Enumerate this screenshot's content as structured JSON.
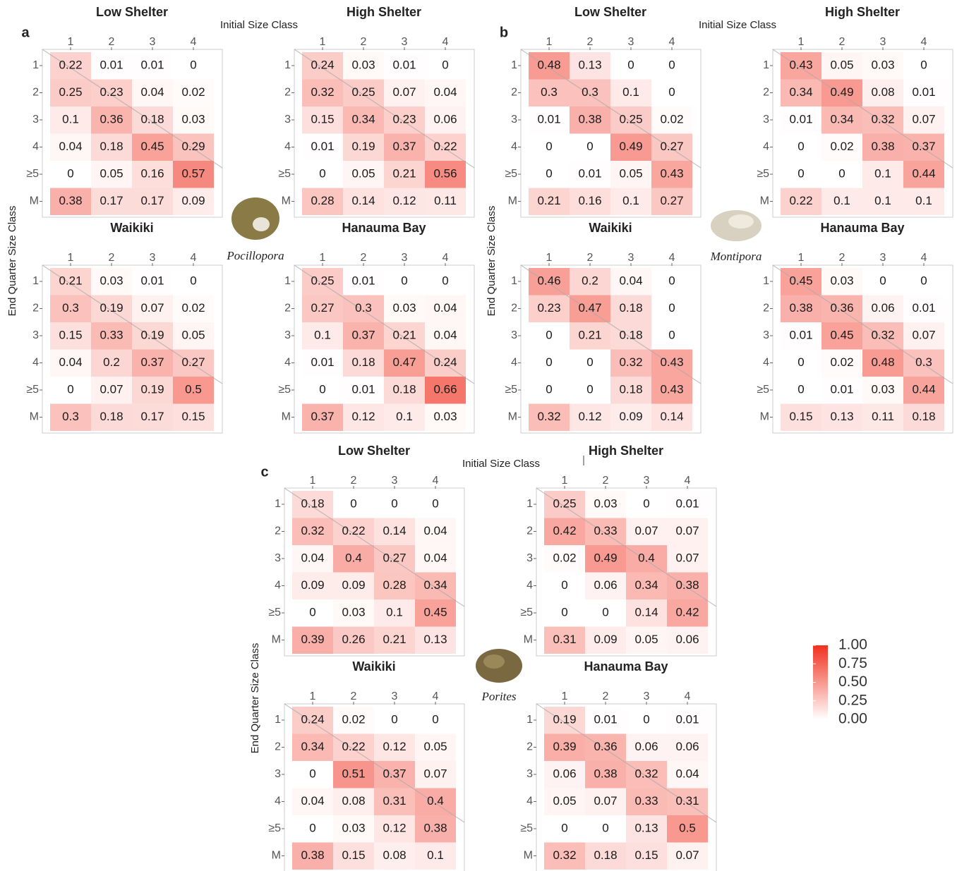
{
  "panels": [
    {
      "label": "a",
      "species": "Pocillopora",
      "xlabel": "Initial Size Class",
      "ylabel": "End Quarter Size Class"
    },
    {
      "label": "b",
      "species": "Montipora",
      "xlabel": "Initial Size Class",
      "ylabel": "End Quarter Size Class"
    },
    {
      "label": "c",
      "species": "Porites",
      "xlabel": "Initial Size Class",
      "ylabel": "End Quarter Size Class"
    }
  ],
  "colorbar": {
    "lim": [
      0,
      1
    ],
    "colors": [
      "#ffffff",
      "#f0301e"
    ],
    "ticks": [
      {
        "value": 1,
        "label": "1.00"
      },
      {
        "value": 0.75,
        "label": "0.75"
      },
      {
        "value": 0.5,
        "label": "0.50"
      },
      {
        "value": 0.25,
        "label": "0.25"
      },
      {
        "value": 0,
        "label": "0.00"
      }
    ]
  },
  "chart_data": [
    {
      "type": "heatmap",
      "title": "Low Shelter",
      "x": [
        "1",
        "2",
        "3",
        "4"
      ],
      "y": [
        "1",
        "2",
        "3",
        "4",
        "≥5",
        "M"
      ],
      "values": [
        [
          0.22,
          0.01,
          0.01,
          0
        ],
        [
          0.25,
          0.23,
          0.04,
          0.02
        ],
        [
          0.1,
          0.36,
          0.18,
          0.03
        ],
        [
          0.04,
          0.18,
          0.45,
          0.29
        ],
        [
          0,
          0.05,
          0.16,
          0.57
        ],
        [
          0.38,
          0.17,
          0.17,
          0.09
        ]
      ]
    },
    {
      "type": "heatmap",
      "title": "High Shelter",
      "x": [
        "1",
        "2",
        "3",
        "4"
      ],
      "y": [
        "1",
        "2",
        "3",
        "4",
        "≥5",
        "M"
      ],
      "values": [
        [
          0.24,
          0.03,
          0.01,
          0
        ],
        [
          0.32,
          0.25,
          0.07,
          0.04
        ],
        [
          0.15,
          0.34,
          0.23,
          0.06
        ],
        [
          0.01,
          0.19,
          0.37,
          0.22
        ],
        [
          0,
          0.05,
          0.21,
          0.56
        ],
        [
          0.28,
          0.14,
          0.12,
          0.11
        ]
      ]
    },
    {
      "type": "heatmap",
      "title": "Waikiki",
      "x": [
        "1",
        "2",
        "3",
        "4"
      ],
      "y": [
        "1",
        "2",
        "3",
        "4",
        "≥5",
        "M"
      ],
      "values": [
        [
          0.21,
          0.03,
          0.01,
          0
        ],
        [
          0.3,
          0.19,
          0.07,
          0.02
        ],
        [
          0.15,
          0.33,
          0.19,
          0.05
        ],
        [
          0.04,
          0.2,
          0.37,
          0.27
        ],
        [
          0,
          0.07,
          0.19,
          0.5
        ],
        [
          0.3,
          0.18,
          0.17,
          0.15
        ]
      ]
    },
    {
      "type": "heatmap",
      "title": "Hanauma Bay",
      "x": [
        "1",
        "2",
        "3",
        "4"
      ],
      "y": [
        "1",
        "2",
        "3",
        "4",
        "≥5",
        "M"
      ],
      "values": [
        [
          0.25,
          0.01,
          0,
          0
        ],
        [
          0.27,
          0.3,
          0.03,
          0.04
        ],
        [
          0.1,
          0.37,
          0.21,
          0.04
        ],
        [
          0.01,
          0.18,
          0.47,
          0.24
        ],
        [
          0,
          0.01,
          0.18,
          0.66
        ],
        [
          0.37,
          0.12,
          0.1,
          0.03
        ]
      ]
    },
    {
      "type": "heatmap",
      "title": "Low Shelter",
      "x": [
        "1",
        "2",
        "3",
        "4"
      ],
      "y": [
        "1",
        "2",
        "3",
        "4",
        "≥5",
        "M"
      ],
      "values": [
        [
          0.48,
          0.13,
          0,
          0
        ],
        [
          0.3,
          0.3,
          0.1,
          0
        ],
        [
          0.01,
          0.38,
          0.25,
          0.02
        ],
        [
          0,
          0,
          0.49,
          0.27
        ],
        [
          0,
          0.01,
          0.05,
          0.43
        ],
        [
          0.21,
          0.16,
          0.1,
          0.27
        ]
      ]
    },
    {
      "type": "heatmap",
      "title": "High Shelter",
      "x": [
        "1",
        "2",
        "3",
        "4"
      ],
      "y": [
        "1",
        "2",
        "3",
        "4",
        "≥5",
        "M"
      ],
      "values": [
        [
          0.43,
          0.05,
          0.03,
          0
        ],
        [
          0.34,
          0.49,
          0.08,
          0.01
        ],
        [
          0.01,
          0.34,
          0.32,
          0.07
        ],
        [
          0,
          0.02,
          0.38,
          0.37
        ],
        [
          0,
          0,
          0.1,
          0.44
        ],
        [
          0.22,
          0.1,
          0.1,
          0.1
        ]
      ]
    },
    {
      "type": "heatmap",
      "title": "Waikiki",
      "x": [
        "1",
        "2",
        "3",
        "4"
      ],
      "y": [
        "1",
        "2",
        "3",
        "4",
        "≥5",
        "M"
      ],
      "values": [
        [
          0.46,
          0.2,
          0.04,
          0
        ],
        [
          0.23,
          0.47,
          0.18,
          0
        ],
        [
          0,
          0.21,
          0.18,
          0
        ],
        [
          0,
          0,
          0.32,
          0.43
        ],
        [
          0,
          0,
          0.18,
          0.43
        ],
        [
          0.32,
          0.12,
          0.09,
          0.14
        ]
      ]
    },
    {
      "type": "heatmap",
      "title": "Hanauma Bay",
      "x": [
        "1",
        "2",
        "3",
        "4"
      ],
      "y": [
        "1",
        "2",
        "3",
        "4",
        "≥5",
        "M"
      ],
      "values": [
        [
          0.45,
          0.03,
          0,
          0
        ],
        [
          0.38,
          0.36,
          0.06,
          0.01
        ],
        [
          0.01,
          0.45,
          0.32,
          0.07
        ],
        [
          0,
          0.02,
          0.48,
          0.3
        ],
        [
          0,
          0.01,
          0.03,
          0.44
        ],
        [
          0.15,
          0.13,
          0.11,
          0.18
        ]
      ]
    },
    {
      "type": "heatmap",
      "title": "Low Shelter",
      "x": [
        "1",
        "2",
        "3",
        "4"
      ],
      "y": [
        "1",
        "2",
        "3",
        "4",
        "≥5",
        "M"
      ],
      "values": [
        [
          0.18,
          0,
          0,
          0
        ],
        [
          0.32,
          0.22,
          0.14,
          0.04
        ],
        [
          0.04,
          0.4,
          0.27,
          0.04
        ],
        [
          0.09,
          0.09,
          0.28,
          0.34
        ],
        [
          0,
          0.03,
          0.1,
          0.45
        ],
        [
          0.39,
          0.26,
          0.21,
          0.13
        ]
      ]
    },
    {
      "type": "heatmap",
      "title": "High Shelter",
      "x": [
        "1",
        "2",
        "3",
        "4"
      ],
      "y": [
        "1",
        "2",
        "3",
        "4",
        "≥5",
        "M"
      ],
      "values": [
        [
          0.25,
          0.03,
          0,
          0.01
        ],
        [
          0.42,
          0.33,
          0.07,
          0.07
        ],
        [
          0.02,
          0.49,
          0.4,
          0.07
        ],
        [
          0,
          0.06,
          0.34,
          0.38
        ],
        [
          0,
          0,
          0.14,
          0.42
        ],
        [
          0.31,
          0.09,
          0.05,
          0.06
        ]
      ]
    },
    {
      "type": "heatmap",
      "title": "Waikiki",
      "x": [
        "1",
        "2",
        "3",
        "4"
      ],
      "y": [
        "1",
        "2",
        "3",
        "4",
        "≥5",
        "M"
      ],
      "values": [
        [
          0.24,
          0.02,
          0,
          0
        ],
        [
          0.34,
          0.22,
          0.12,
          0.05
        ],
        [
          0,
          0.51,
          0.37,
          0.07
        ],
        [
          0.04,
          0.08,
          0.31,
          0.4
        ],
        [
          0,
          0.03,
          0.12,
          0.38
        ],
        [
          0.38,
          0.15,
          0.08,
          0.1
        ]
      ]
    },
    {
      "type": "heatmap",
      "title": "Hanauma Bay",
      "x": [
        "1",
        "2",
        "3",
        "4"
      ],
      "y": [
        "1",
        "2",
        "3",
        "4",
        "≥5",
        "M"
      ],
      "values": [
        [
          0.19,
          0.01,
          0,
          0.01
        ],
        [
          0.39,
          0.36,
          0.06,
          0.06
        ],
        [
          0.06,
          0.38,
          0.32,
          0.04
        ],
        [
          0.05,
          0.07,
          0.33,
          0.31
        ],
        [
          0,
          0,
          0.13,
          0.5
        ],
        [
          0.32,
          0.18,
          0.15,
          0.07
        ]
      ]
    }
  ]
}
